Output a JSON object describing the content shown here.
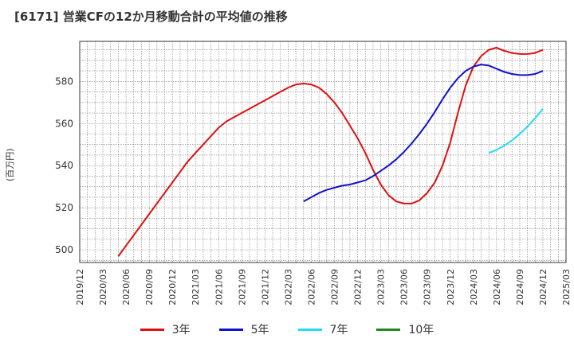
{
  "title": "[6171]  営業CFの12か月移動合計の平均値の推移",
  "ylabel": "(百万円)",
  "chart_data": {
    "type": "line",
    "x_ticks": [
      "2019/12",
      "2020/03",
      "2020/06",
      "2020/09",
      "2020/12",
      "2021/03",
      "2021/06",
      "2021/09",
      "2021/12",
      "2022/03",
      "2022/06",
      "2022/09",
      "2022/12",
      "2023/03",
      "2023/06",
      "2023/09",
      "2023/12",
      "2024/03",
      "2024/06",
      "2024/09",
      "2024/12",
      "2025/03"
    ],
    "y_ticks": [
      500,
      520,
      540,
      560,
      580
    ],
    "ylim": [
      494,
      599
    ],
    "series": [
      {
        "name": "3年",
        "color": "#dd1111",
        "x": [
          "2020/05",
          "2020/06",
          "2020/07",
          "2020/08",
          "2020/09",
          "2020/10",
          "2020/11",
          "2020/12",
          "2021/01",
          "2021/02",
          "2021/03",
          "2021/04",
          "2021/05",
          "2021/06",
          "2021/07",
          "2021/08",
          "2021/09",
          "2021/10",
          "2021/11",
          "2021/12",
          "2022/01",
          "2022/02",
          "2022/03",
          "2022/04",
          "2022/05",
          "2022/06",
          "2022/07",
          "2022/08",
          "2022/09",
          "2022/10",
          "2022/11",
          "2022/12",
          "2023/01",
          "2023/02",
          "2023/03",
          "2023/04",
          "2023/05",
          "2023/06",
          "2023/07",
          "2023/08",
          "2023/09",
          "2023/10",
          "2023/11",
          "2023/12",
          "2024/01",
          "2024/02",
          "2024/03",
          "2024/04",
          "2024/05",
          "2024/06",
          "2024/07",
          "2024/08",
          "2024/09",
          "2024/10",
          "2024/11",
          "2024/12"
        ],
        "values": [
          497,
          502,
          507,
          512,
          517,
          522,
          527,
          532,
          537,
          542,
          546,
          550,
          554,
          558,
          561,
          563,
          565,
          567,
          569,
          571,
          573,
          575,
          577,
          578.5,
          579,
          578.5,
          577,
          574,
          570,
          565,
          559,
          553,
          546,
          538,
          531,
          526,
          523,
          522,
          522,
          523.5,
          527,
          532,
          540,
          551,
          565,
          578,
          587,
          592,
          595,
          596,
          594.5,
          593.5,
          593,
          593,
          593.5,
          595
        ]
      },
      {
        "name": "5年",
        "color": "#1111cc",
        "x": [
          "2022/05",
          "2022/06",
          "2022/07",
          "2022/08",
          "2022/09",
          "2022/10",
          "2022/11",
          "2022/12",
          "2023/01",
          "2023/02",
          "2023/03",
          "2023/04",
          "2023/05",
          "2023/06",
          "2023/07",
          "2023/08",
          "2023/09",
          "2023/10",
          "2023/11",
          "2023/12",
          "2024/01",
          "2024/02",
          "2024/03",
          "2024/04",
          "2024/05",
          "2024/06",
          "2024/07",
          "2024/08",
          "2024/09",
          "2024/10",
          "2024/11",
          "2024/12"
        ],
        "values": [
          523,
          525,
          527,
          528.5,
          529.5,
          530.5,
          531,
          532,
          533,
          535,
          537.5,
          540,
          543,
          546.5,
          550.5,
          555,
          560,
          565.5,
          571.5,
          577,
          581.5,
          585,
          587,
          588,
          587.5,
          586,
          584.5,
          583.5,
          583,
          583,
          583.5,
          585
        ]
      },
      {
        "name": "7年",
        "color": "#22ddee",
        "x": [
          "2024/05",
          "2024/06",
          "2024/07",
          "2024/08",
          "2024/09",
          "2024/10",
          "2024/11",
          "2024/12"
        ],
        "values": [
          546,
          547.5,
          549.5,
          552,
          555,
          558.5,
          562.5,
          567
        ]
      },
      {
        "name": "10年",
        "color": "#228822",
        "x": [],
        "values": []
      }
    ]
  }
}
